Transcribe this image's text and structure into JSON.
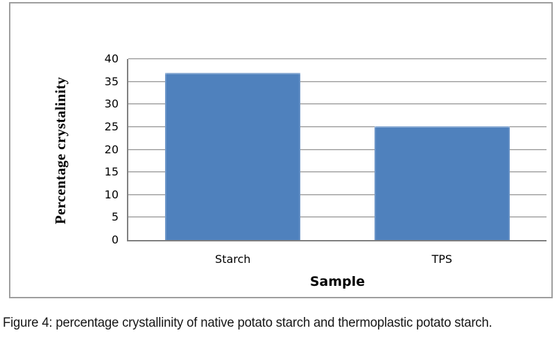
{
  "figure": {
    "caption": "Figure 4: percentage crystallinity of native potato starch and thermoplastic potato starch."
  },
  "chart_data": {
    "type": "bar",
    "categories": [
      "Starch",
      "TPS"
    ],
    "values": [
      36.9,
      25.1
    ],
    "title": "",
    "xlabel": "Sample",
    "ylabel": "Percentage crystalinity",
    "ylim": [
      0,
      40
    ],
    "yticks": [
      0,
      5,
      10,
      15,
      20,
      25,
      30,
      35,
      40
    ],
    "grid": "horizontal-major",
    "legend": "none",
    "colors": {
      "bar": "#4F81BD",
      "gridline": "#999999",
      "axis": "#7F7F7F",
      "frame_border": "#9E9E9E",
      "text": "#000000"
    }
  }
}
